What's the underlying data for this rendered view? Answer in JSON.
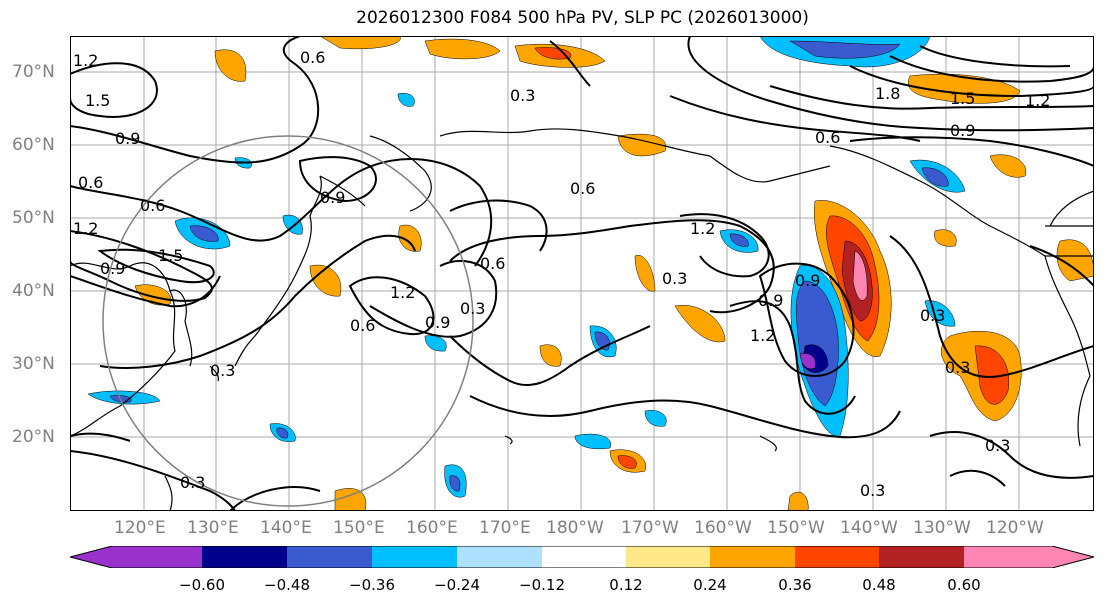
{
  "title": "2026012300 F084 500 hPa PV, SLP PC (2026013000)",
  "lat_labels": [
    "70°N",
    "60°N",
    "50°N",
    "40°N",
    "30°N",
    "20°N"
  ],
  "lon_labels": [
    "120°E",
    "130°E",
    "140°E",
    "150°E",
    "160°E",
    "170°E",
    "180°W",
    "170°W",
    "160°W",
    "150°W",
    "140°W",
    "130°W",
    "120°W"
  ],
  "contour_labels": [
    "1.2",
    "1.5",
    "0.9",
    "0.6",
    "0.6",
    "0.3",
    "1.2",
    "1.5",
    "0.9",
    "0.6",
    "0.9",
    "0.6",
    "1.2",
    "1.5",
    "0.9",
    "0.6",
    "0.3",
    "0.9",
    "1.2",
    "0.6",
    "1.2",
    "0.3",
    "0.3",
    "0.9",
    "0.6",
    "0.9",
    "1.2",
    "1.8",
    "1.5",
    "1.2",
    "0.9",
    "0.3",
    "0.3",
    "0.3",
    "0.3",
    "0.3"
  ],
  "colorbar": {
    "ticks": [
      "−0.60",
      "−0.48",
      "−0.36",
      "−0.24",
      "−0.12",
      "0.12",
      "0.24",
      "0.36",
      "0.48",
      "0.60"
    ],
    "colors": [
      "#9932cc",
      "#00008b",
      "#3a5bd0",
      "#00bfff",
      "#b0e0ff",
      "#ffffff",
      "#ffe88a",
      "#ffa500",
      "#ff4500",
      "#b22222",
      "#ff85b3"
    ]
  },
  "colors": {
    "grid": "#aaaaaa",
    "contour": "#000000",
    "circle": "#808080",
    "axis_text": "#808080"
  }
}
